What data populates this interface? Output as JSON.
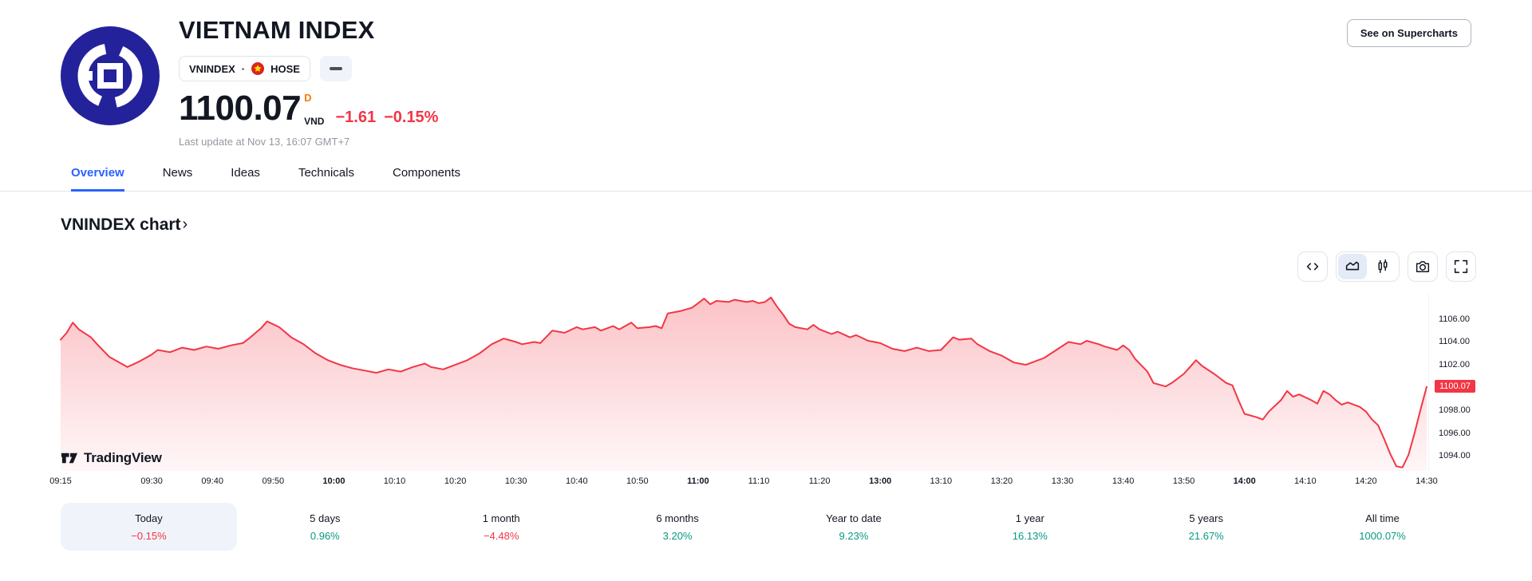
{
  "header": {
    "title": "VIETNAM INDEX",
    "symbol": "VNINDEX",
    "symbol_separator": "·",
    "exchange": "HOSE",
    "price": "1100.07",
    "interval_marker": "D",
    "currency": "VND",
    "change_abs": "−1.61",
    "change_pct": "−0.15%",
    "last_update": "Last update at Nov 13, 16:07 GMT+7",
    "supercharts_button": "See on Supercharts"
  },
  "tabs": [
    {
      "label": "Overview",
      "active": true
    },
    {
      "label": "News",
      "active": false
    },
    {
      "label": "Ideas",
      "active": false
    },
    {
      "label": "Technicals",
      "active": false
    },
    {
      "label": "Components",
      "active": false
    }
  ],
  "section": {
    "title": "VNINDEX chart",
    "chevron": "›"
  },
  "toolbar": {
    "icons": [
      "code-icon",
      "area-chart-icon",
      "candles-icon",
      "camera-icon",
      "fullscreen-icon"
    ],
    "selected_icon": "area-chart-icon"
  },
  "watermark": {
    "text": "TradingView"
  },
  "chart_data": {
    "type": "area",
    "title": "VNINDEX chart",
    "line_color": "#F23645",
    "grid": false,
    "legend": false,
    "last_price": 1100.07,
    "last_price_label": "1100.07",
    "x_unit": "trading minutes from 09:15 (11:30–13:00 lunch gap compressed)",
    "x_range": [
      0,
      225
    ],
    "ylim": [
      1092.7,
      1108.3
    ],
    "y_ticks": [
      "1106.00",
      "1104.00",
      "1102.00",
      "1098.00",
      "1096.00",
      "1094.00"
    ],
    "x_ticks": [
      {
        "t": 0,
        "label": "09:15",
        "bold": false
      },
      {
        "t": 15,
        "label": "09:30",
        "bold": false
      },
      {
        "t": 25,
        "label": "09:40",
        "bold": false
      },
      {
        "t": 35,
        "label": "09:50",
        "bold": false
      },
      {
        "t": 45,
        "label": "10:00",
        "bold": true
      },
      {
        "t": 55,
        "label": "10:10",
        "bold": false
      },
      {
        "t": 65,
        "label": "10:20",
        "bold": false
      },
      {
        "t": 75,
        "label": "10:30",
        "bold": false
      },
      {
        "t": 85,
        "label": "10:40",
        "bold": false
      },
      {
        "t": 95,
        "label": "10:50",
        "bold": false
      },
      {
        "t": 105,
        "label": "11:00",
        "bold": true
      },
      {
        "t": 115,
        "label": "11:10",
        "bold": false
      },
      {
        "t": 125,
        "label": "11:20",
        "bold": false
      },
      {
        "t": 135,
        "label": "13:00",
        "bold": true
      },
      {
        "t": 145,
        "label": "13:10",
        "bold": false
      },
      {
        "t": 155,
        "label": "13:20",
        "bold": false
      },
      {
        "t": 165,
        "label": "13:30",
        "bold": false
      },
      {
        "t": 175,
        "label": "13:40",
        "bold": false
      },
      {
        "t": 185,
        "label": "13:50",
        "bold": false
      },
      {
        "t": 195,
        "label": "14:00",
        "bold": true
      },
      {
        "t": 205,
        "label": "14:10",
        "bold": false
      },
      {
        "t": 215,
        "label": "14:20",
        "bold": false
      },
      {
        "t": 225,
        "label": "14:30",
        "bold": false
      }
    ],
    "points": [
      [
        0,
        1104.2
      ],
      [
        1,
        1104.8
      ],
      [
        2,
        1105.7
      ],
      [
        3,
        1105.1
      ],
      [
        5,
        1104.4
      ],
      [
        6,
        1103.8
      ],
      [
        8,
        1102.7
      ],
      [
        10,
        1102.1
      ],
      [
        11,
        1101.8
      ],
      [
        13,
        1102.3
      ],
      [
        15,
        1102.9
      ],
      [
        16,
        1103.3
      ],
      [
        18,
        1103.1
      ],
      [
        20,
        1103.5
      ],
      [
        22,
        1103.3
      ],
      [
        24,
        1103.6
      ],
      [
        26,
        1103.4
      ],
      [
        28,
        1103.7
      ],
      [
        30,
        1103.9
      ],
      [
        31,
        1104.3
      ],
      [
        33,
        1105.2
      ],
      [
        34,
        1105.8
      ],
      [
        36,
        1105.3
      ],
      [
        38,
        1104.4
      ],
      [
        40,
        1103.8
      ],
      [
        42,
        1103.0
      ],
      [
        44,
        1102.4
      ],
      [
        46,
        1102.0
      ],
      [
        48,
        1101.7
      ],
      [
        50,
        1101.5
      ],
      [
        52,
        1101.3
      ],
      [
        54,
        1101.6
      ],
      [
        56,
        1101.4
      ],
      [
        58,
        1101.8
      ],
      [
        60,
        1102.1
      ],
      [
        61,
        1101.8
      ],
      [
        63,
        1101.6
      ],
      [
        65,
        1102.0
      ],
      [
        67,
        1102.4
      ],
      [
        69,
        1103.0
      ],
      [
        71,
        1103.8
      ],
      [
        73,
        1104.3
      ],
      [
        75,
        1104.0
      ],
      [
        76,
        1103.8
      ],
      [
        78,
        1104.0
      ],
      [
        79,
        1103.9
      ],
      [
        81,
        1105.0
      ],
      [
        83,
        1104.8
      ],
      [
        85,
        1105.3
      ],
      [
        86,
        1105.1
      ],
      [
        88,
        1105.3
      ],
      [
        89,
        1105.0
      ],
      [
        91,
        1105.4
      ],
      [
        92,
        1105.1
      ],
      [
        94,
        1105.7
      ],
      [
        95,
        1105.2
      ],
      [
        97,
        1105.3
      ],
      [
        98,
        1105.4
      ],
      [
        99,
        1105.2
      ],
      [
        100,
        1106.5
      ],
      [
        102,
        1106.7
      ],
      [
        104,
        1107.0
      ],
      [
        105,
        1107.4
      ],
      [
        106,
        1107.8
      ],
      [
        107,
        1107.3
      ],
      [
        108,
        1107.6
      ],
      [
        110,
        1107.5
      ],
      [
        111,
        1107.7
      ],
      [
        113,
        1107.5
      ],
      [
        114,
        1107.6
      ],
      [
        115,
        1107.4
      ],
      [
        116,
        1107.5
      ],
      [
        117,
        1107.9
      ],
      [
        118,
        1107.1
      ],
      [
        119,
        1106.4
      ],
      [
        120,
        1105.6
      ],
      [
        121,
        1105.3
      ],
      [
        123,
        1105.1
      ],
      [
        124,
        1105.5
      ],
      [
        125,
        1105.1
      ],
      [
        127,
        1104.7
      ],
      [
        128,
        1104.9
      ],
      [
        130,
        1104.4
      ],
      [
        131,
        1104.6
      ],
      [
        133,
        1104.1
      ],
      [
        135,
        1103.9
      ],
      [
        137,
        1103.4
      ],
      [
        139,
        1103.2
      ],
      [
        141,
        1103.5
      ],
      [
        143,
        1103.2
      ],
      [
        145,
        1103.3
      ],
      [
        147,
        1104.4
      ],
      [
        148,
        1104.2
      ],
      [
        150,
        1104.3
      ],
      [
        151,
        1103.8
      ],
      [
        153,
        1103.2
      ],
      [
        155,
        1102.8
      ],
      [
        157,
        1102.2
      ],
      [
        159,
        1102.0
      ],
      [
        160,
        1102.2
      ],
      [
        162,
        1102.6
      ],
      [
        164,
        1103.3
      ],
      [
        166,
        1104.0
      ],
      [
        168,
        1103.8
      ],
      [
        169,
        1104.1
      ],
      [
        171,
        1103.8
      ],
      [
        172,
        1103.6
      ],
      [
        174,
        1103.3
      ],
      [
        175,
        1103.7
      ],
      [
        176,
        1103.3
      ],
      [
        177,
        1102.5
      ],
      [
        179,
        1101.4
      ],
      [
        180,
        1100.4
      ],
      [
        182,
        1100.1
      ],
      [
        183,
        1100.4
      ],
      [
        185,
        1101.2
      ],
      [
        186,
        1101.8
      ],
      [
        187,
        1102.4
      ],
      [
        188,
        1101.9
      ],
      [
        190,
        1101.2
      ],
      [
        192,
        1100.4
      ],
      [
        193,
        1100.2
      ],
      [
        194,
        1098.9
      ],
      [
        195,
        1097.7
      ],
      [
        197,
        1097.4
      ],
      [
        198,
        1097.2
      ],
      [
        199,
        1097.9
      ],
      [
        201,
        1098.9
      ],
      [
        202,
        1099.7
      ],
      [
        203,
        1099.2
      ],
      [
        204,
        1099.4
      ],
      [
        206,
        1098.9
      ],
      [
        207,
        1098.6
      ],
      [
        208,
        1099.7
      ],
      [
        209,
        1099.4
      ],
      [
        210,
        1098.9
      ],
      [
        211,
        1098.5
      ],
      [
        212,
        1098.7
      ],
      [
        214,
        1098.3
      ],
      [
        215,
        1097.9
      ],
      [
        216,
        1097.2
      ],
      [
        217,
        1096.7
      ],
      [
        218,
        1095.5
      ],
      [
        219,
        1094.2
      ],
      [
        220,
        1093.1
      ],
      [
        221,
        1093.0
      ],
      [
        222,
        1094.1
      ],
      [
        223,
        1096.0
      ],
      [
        224,
        1098.1
      ],
      [
        225,
        1100.07
      ]
    ]
  },
  "periods": [
    {
      "label": "Today",
      "value": "−0.15%",
      "direction": "down",
      "selected": true
    },
    {
      "label": "5 days",
      "value": "0.96%",
      "direction": "up",
      "selected": false
    },
    {
      "label": "1 month",
      "value": "−4.48%",
      "direction": "down",
      "selected": false
    },
    {
      "label": "6 months",
      "value": "3.20%",
      "direction": "up",
      "selected": false
    },
    {
      "label": "Year to date",
      "value": "9.23%",
      "direction": "up",
      "selected": false
    },
    {
      "label": "1 year",
      "value": "16.13%",
      "direction": "up",
      "selected": false
    },
    {
      "label": "5 years",
      "value": "21.67%",
      "direction": "up",
      "selected": false
    },
    {
      "label": "All time",
      "value": "1000.07%",
      "direction": "up",
      "selected": false
    }
  ],
  "colors": {
    "accent_blue": "#2962FF",
    "red": "#F23645",
    "green": "#089981",
    "text": "#131722",
    "muted": "#9598A1",
    "border": "#E0E3EB",
    "chip_bg": "#F0F3FA",
    "logo_navy": "#24229A",
    "flag_red": "#DA251D",
    "flag_yellow": "#FFDE00",
    "interval_orange": "#F57C00"
  }
}
